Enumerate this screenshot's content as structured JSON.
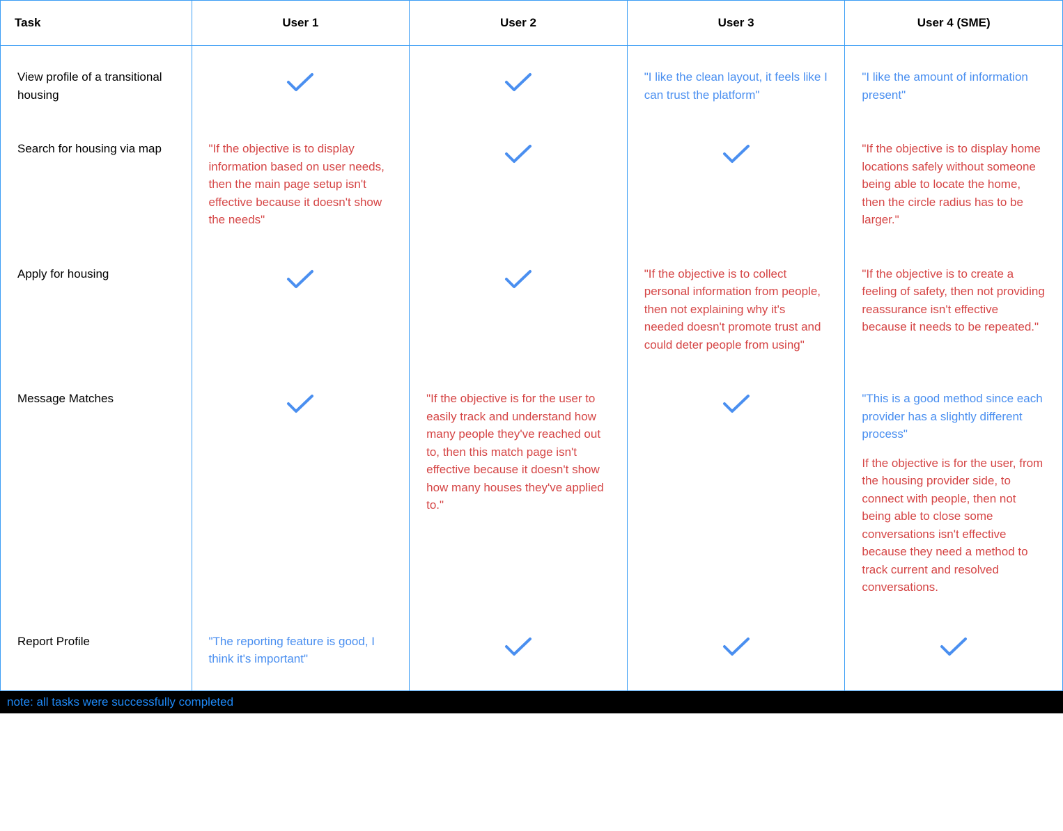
{
  "colors": {
    "border": "#3a9df5",
    "check": "#4a8ff0",
    "positive_text": "#4a8ff0",
    "negative_text": "#d54545",
    "task_text": "#000000",
    "header_text": "#000000",
    "footer_bg": "#000000",
    "footer_text": "#1e88f5",
    "background": "#ffffff"
  },
  "typography": {
    "header_fontsize": 17,
    "header_weight": 700,
    "cell_fontsize": 17,
    "line_height": 1.5
  },
  "table": {
    "type": "table",
    "columns": [
      {
        "label": "Task",
        "align": "left"
      },
      {
        "label": "User 1",
        "align": "center"
      },
      {
        "label": "User 2",
        "align": "center"
      },
      {
        "label": "User 3",
        "align": "center"
      },
      {
        "label": "User 4 (SME)",
        "align": "center"
      }
    ],
    "rows": [
      {
        "task": "View profile of a transitional housing",
        "cells": [
          {
            "kind": "check"
          },
          {
            "kind": "check"
          },
          {
            "kind": "quote",
            "sentiment": "positive",
            "text": "\"I like the clean layout, it feels like I can trust the platform\""
          },
          {
            "kind": "quote",
            "sentiment": "positive",
            "text": "\"I like the amount of information present\""
          }
        ]
      },
      {
        "task": "Search for housing via map",
        "cells": [
          {
            "kind": "quote",
            "sentiment": "negative",
            "text": "\"If the objective is to display information based on user needs, then the main page setup isn't effective because it doesn't show the needs\""
          },
          {
            "kind": "check"
          },
          {
            "kind": "check"
          },
          {
            "kind": "quote",
            "sentiment": "negative",
            "text": "\"If the objective is to display home locations safely without someone being able to locate the home, then the circle radius has to be larger.\""
          }
        ]
      },
      {
        "task": "Apply for housing",
        "cells": [
          {
            "kind": "check"
          },
          {
            "kind": "check"
          },
          {
            "kind": "quote",
            "sentiment": "negative",
            "text": "\"If the objective is to collect personal information from people, then not explaining why it's needed doesn't promote trust and could deter people from using\""
          },
          {
            "kind": "quote",
            "sentiment": "negative",
            "text": "\"If the objective is to create a feeling of safety, then not providing reassurance isn't effective because it needs to be repeated.\""
          }
        ]
      },
      {
        "task": "Message Matches",
        "cells": [
          {
            "kind": "check"
          },
          {
            "kind": "quote",
            "sentiment": "negative",
            "text": "\"If the objective is for the user to easily track and understand how many people they've reached out to, then this match page isn't effective because it doesn't show how many houses they've applied to.\""
          },
          {
            "kind": "check"
          },
          {
            "kind": "multi",
            "parts": [
              {
                "sentiment": "positive",
                "text": "\"This is a good method since each provider has a slightly different process\""
              },
              {
                "sentiment": "negative",
                "text": "If the objective is for the user, from the housing provider side, to connect with people, then not being able to close some conversations isn't effective because they need a method to track current and resolved conversations."
              }
            ]
          }
        ]
      },
      {
        "task": "Report Profile",
        "cells": [
          {
            "kind": "quote",
            "sentiment": "positive",
            "text": "\"The reporting feature is good, I think it's important\""
          },
          {
            "kind": "check"
          },
          {
            "kind": "check"
          },
          {
            "kind": "check"
          }
        ]
      }
    ]
  },
  "footer_note": "note: all tasks were successfully completed"
}
